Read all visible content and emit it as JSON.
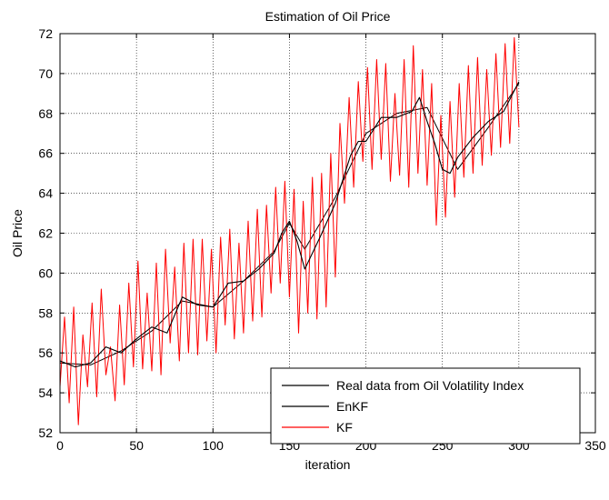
{
  "chart_data": {
    "type": "line",
    "title": "Estimation of Oil Price",
    "xlabel": "iteration",
    "ylabel": "Oil Price",
    "xlim": [
      0,
      350
    ],
    "ylim": [
      52,
      72
    ],
    "xticks": [
      0,
      50,
      100,
      150,
      200,
      250,
      300,
      350
    ],
    "yticks": [
      52,
      54,
      56,
      58,
      60,
      62,
      64,
      66,
      68,
      70,
      72
    ],
    "grid": true,
    "legend_position": "bottom-right",
    "series": [
      {
        "name": "Real data from Oil Volatility Index",
        "color": "#000000",
        "x": [
          0,
          20,
          40,
          60,
          80,
          100,
          120,
          140,
          150,
          160,
          180,
          200,
          220,
          240,
          260,
          280,
          300
        ],
        "y": [
          55.5,
          55.4,
          56.1,
          57.1,
          58.6,
          58.3,
          59.6,
          61.1,
          62.5,
          61.2,
          63.8,
          67.0,
          68.0,
          68.3,
          65.2,
          67.3,
          69.5
        ]
      },
      {
        "name": "EnKF",
        "color": "#000000",
        "x": [
          0,
          10,
          20,
          30,
          40,
          50,
          60,
          70,
          80,
          90,
          100,
          110,
          120,
          130,
          140,
          145,
          150,
          155,
          160,
          170,
          180,
          190,
          195,
          200,
          210,
          220,
          230,
          235,
          240,
          245,
          250,
          255,
          260,
          270,
          280,
          290,
          300
        ],
        "y": [
          55.6,
          55.3,
          55.5,
          56.3,
          56.0,
          56.7,
          57.3,
          57.0,
          58.8,
          58.4,
          58.3,
          59.5,
          59.6,
          60.2,
          61.0,
          62.0,
          62.6,
          61.6,
          60.2,
          61.8,
          63.5,
          65.9,
          66.6,
          66.6,
          67.8,
          67.8,
          68.1,
          68.8,
          67.6,
          66.5,
          65.2,
          65.0,
          65.8,
          66.8,
          67.6,
          68.1,
          69.6
        ]
      },
      {
        "name": "KF",
        "color": "#ff0000",
        "x": [
          0,
          3,
          6,
          9,
          12,
          15,
          18,
          21,
          24,
          27,
          30,
          33,
          36,
          39,
          42,
          45,
          48,
          51,
          54,
          57,
          60,
          63,
          66,
          69,
          72,
          75,
          78,
          81,
          84,
          87,
          90,
          93,
          96,
          99,
          102,
          105,
          108,
          111,
          114,
          117,
          120,
          123,
          126,
          129,
          132,
          135,
          138,
          141,
          144,
          147,
          150,
          153,
          156,
          159,
          162,
          165,
          168,
          171,
          174,
          177,
          180,
          183,
          186,
          189,
          192,
          195,
          198,
          201,
          204,
          207,
          210,
          213,
          216,
          219,
          222,
          225,
          228,
          231,
          234,
          237,
          240,
          243,
          246,
          249,
          252,
          255,
          258,
          261,
          264,
          267,
          270,
          273,
          276,
          279,
          282,
          285,
          288,
          291,
          294,
          297,
          300
        ],
        "y": [
          54.3,
          57.8,
          53.5,
          58.3,
          52.4,
          56.9,
          54.3,
          58.5,
          53.8,
          59.2,
          54.9,
          56.3,
          53.6,
          58.4,
          54.4,
          59.5,
          55.3,
          60.6,
          55.2,
          59.0,
          55.1,
          60.5,
          54.9,
          61.2,
          56.5,
          60.3,
          55.6,
          61.5,
          56.0,
          61.7,
          55.9,
          61.7,
          56.6,
          61.2,
          56.0,
          61.8,
          57.4,
          62.2,
          56.7,
          61.5,
          57.0,
          62.6,
          57.6,
          63.2,
          57.8,
          63.4,
          59.0,
          64.3,
          59.5,
          64.6,
          58.8,
          64.2,
          57.0,
          63.6,
          58.0,
          64.8,
          57.7,
          65.0,
          58.3,
          66.0,
          59.8,
          67.5,
          63.5,
          68.8,
          64.3,
          69.6,
          65.6,
          70.3,
          65.2,
          70.7,
          65.7,
          70.5,
          64.6,
          69.0,
          64.9,
          70.7,
          64.3,
          71.4,
          65.0,
          70.2,
          64.4,
          69.5,
          62.4,
          67.9,
          62.8,
          68.6,
          63.8,
          69.5,
          64.8,
          70.4,
          65.0,
          70.8,
          65.4,
          70.2,
          65.9,
          71.0,
          66.3,
          71.5,
          66.5,
          71.8,
          67.3
        ]
      }
    ]
  }
}
